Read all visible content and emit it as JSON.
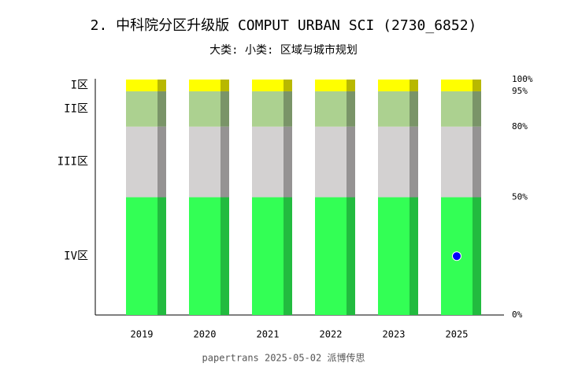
{
  "chart_data": {
    "type": "stacked_bar",
    "title": "2. 中科院分区升级版 COMPUT URBAN SCI (2730_6852)",
    "subtitle": "大类:  小类: 区域与城市规划",
    "footer": "papertrans 2025-05-02 派博传思",
    "categories": [
      "2019",
      "2020",
      "2021",
      "2022",
      "2023",
      "2025"
    ],
    "series": [
      {
        "name": "IV区",
        "color": "#33ff55",
        "shade": "#22bb3f",
        "values": [
          50,
          50,
          50,
          50,
          50,
          50
        ]
      },
      {
        "name": "III区",
        "color": "#d3d1d1",
        "shade": "#959393",
        "values": [
          30,
          30,
          30,
          30,
          30,
          30
        ]
      },
      {
        "name": "II区",
        "color": "#acd190",
        "shade": "#7a9468",
        "values": [
          15,
          15,
          15,
          15,
          15,
          15
        ]
      },
      {
        "name": "I区",
        "color": "#ffff00",
        "shade": "#b8b800",
        "values": [
          5,
          5,
          5,
          5,
          5,
          5
        ]
      }
    ],
    "marker": {
      "color": "#0000ff",
      "values": [
        null,
        null,
        null,
        null,
        null,
        25
      ]
    },
    "ylim": [
      0,
      100
    ],
    "yticks": [
      {
        "value": 0,
        "label": "0%"
      },
      {
        "value": 50,
        "label": "50%"
      },
      {
        "value": 80,
        "label": "80%"
      },
      {
        "value": 95,
        "label": "95%"
      },
      {
        "value": 100,
        "label": "100%"
      }
    ]
  }
}
